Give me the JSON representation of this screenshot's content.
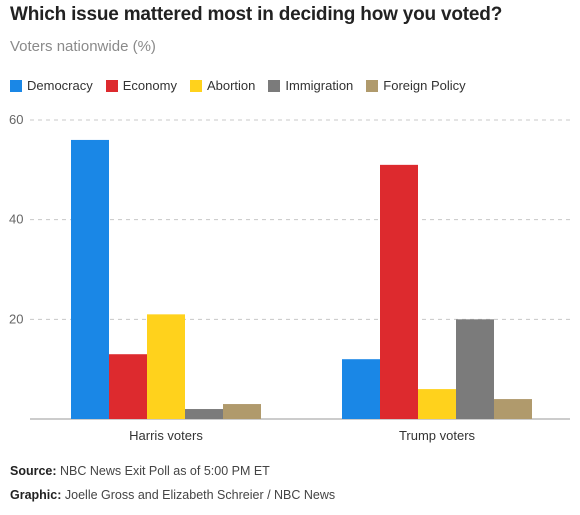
{
  "title": "Which issue mattered most in deciding how you voted?",
  "subtitle": "Voters nationwide (%)",
  "footer": {
    "source_label": "Source:",
    "source_text": "NBC News Exit Poll as of 5:00 PM ET",
    "graphic_label": "Graphic:",
    "graphic_text": "Joelle Gross and Elizabeth Schreier / NBC News"
  },
  "chart_data": {
    "type": "bar",
    "title": "Which issue mattered most in deciding how you voted?",
    "subtitle": "Voters nationwide (%)",
    "categories": [
      "Harris voters",
      "Trump voters"
    ],
    "series": [
      {
        "name": "Democracy",
        "color": "#1a87e6",
        "values": [
          56,
          12
        ]
      },
      {
        "name": "Economy",
        "color": "#dd2a2e",
        "values": [
          13,
          51
        ]
      },
      {
        "name": "Abortion",
        "color": "#ffd21c",
        "values": [
          21,
          6
        ]
      },
      {
        "name": "Immigration",
        "color": "#7b7b7b",
        "values": [
          2,
          20
        ]
      },
      {
        "name": "Foreign Policy",
        "color": "#b09a6c",
        "values": [
          3,
          4
        ]
      }
    ],
    "ylim": [
      0,
      60
    ],
    "yticks": [
      20,
      40,
      60
    ],
    "grid": true,
    "legend_position": "top-left",
    "xlabel": "",
    "ylabel": ""
  }
}
